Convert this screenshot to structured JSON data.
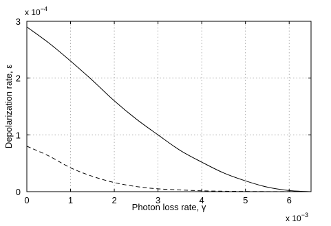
{
  "chart_data": {
    "type": "line",
    "title": "",
    "xlabel": "Photon loss rate, γ",
    "ylabel": "Depolarization rate, ε",
    "x_multiplier": {
      "base": "x 10",
      "exponent": "−3"
    },
    "y_multiplier": {
      "base": "x 10",
      "exponent": "−4"
    },
    "xlim": [
      0,
      0.0065
    ],
    "ylim": [
      0,
      0.0003
    ],
    "xticks": [
      0,
      0.001,
      0.002,
      0.003,
      0.004,
      0.005,
      0.006
    ],
    "xtick_labels": [
      "0",
      "1",
      "2",
      "3",
      "4",
      "5",
      "6"
    ],
    "yticks": [
      0,
      0.0001,
      0.0002,
      0.0003
    ],
    "ytick_labels": [
      "0",
      "1",
      "2",
      "3"
    ],
    "grid": true,
    "series": [
      {
        "style": "solid",
        "color": "#000000",
        "x": [
          0,
          0.0005,
          0.001,
          0.0015,
          0.002,
          0.0025,
          0.003,
          0.0035,
          0.004,
          0.0045,
          0.005,
          0.0055,
          0.006,
          0.0065
        ],
        "y": [
          0.00029,
          0.000262,
          0.00023,
          0.000196,
          0.00016,
          0.000128,
          0.0001,
          7.3e-05,
          5.2e-05,
          3.3e-05,
          1.9e-05,
          8e-06,
          2e-06,
          0.0
        ]
      },
      {
        "style": "dashed",
        "color": "#000000",
        "x": [
          0,
          0.0005,
          0.001,
          0.0015,
          0.002,
          0.0025,
          0.003,
          0.0035,
          0.004,
          0.0045,
          0.005,
          0.0055,
          0.006,
          0.0065
        ],
        "y": [
          8e-05,
          6.3e-05,
          4.2e-05,
          2.7e-05,
          1.6e-05,
          9e-06,
          5e-06,
          3e-06,
          1.5e-06,
          8e-07,
          4e-07,
          2e-07,
          1e-07,
          0.0
        ]
      }
    ]
  }
}
